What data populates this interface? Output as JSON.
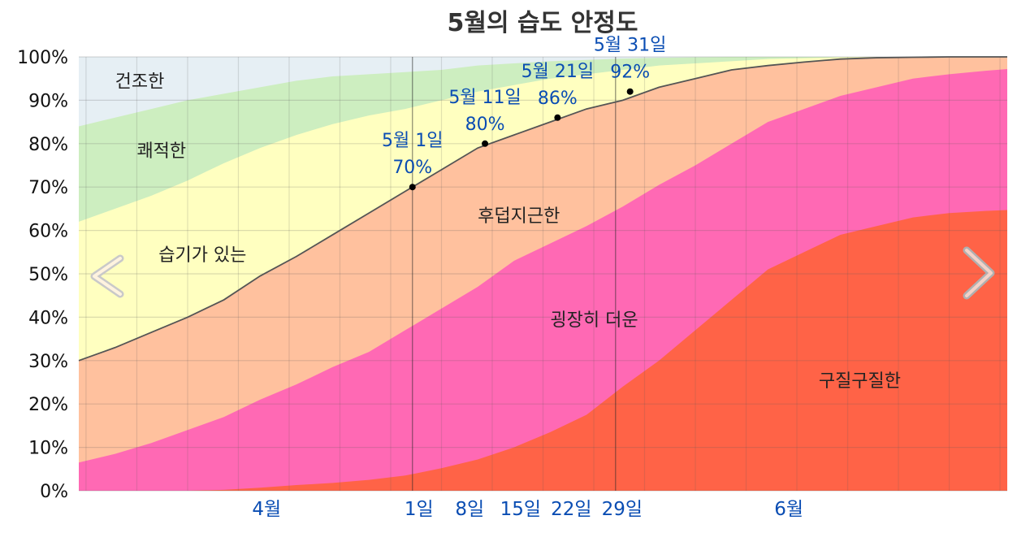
{
  "chart_data": {
    "type": "area",
    "title": "5월의 습도 안정도",
    "ylim": [
      0,
      100
    ],
    "y_ticks": [
      "0%",
      "10%",
      "20%",
      "30%",
      "40%",
      "50%",
      "60%",
      "70%",
      "80%",
      "90%",
      "100%"
    ],
    "xlim": [
      -45,
      83
    ],
    "x_tick_labels": [
      {
        "x": -20,
        "label": "4월"
      },
      {
        "x": 1,
        "label": "1일"
      },
      {
        "x": 8,
        "label": "8일"
      },
      {
        "x": 15,
        "label": "15일"
      },
      {
        "x": 22,
        "label": "22일"
      },
      {
        "x": 29,
        "label": "29일"
      },
      {
        "x": 52,
        "label": "6월"
      }
    ],
    "grid": true,
    "x": [
      -45,
      -40,
      -35,
      -30,
      -25,
      -20,
      -15,
      -10,
      -5,
      0,
      5,
      10,
      15,
      20,
      25,
      30,
      35,
      40,
      45,
      50,
      55,
      60,
      65,
      70,
      75,
      80,
      83
    ],
    "series": [
      {
        "name": "구질구질한",
        "color": "#ff6347",
        "cumulative": [
          0,
          0,
          0,
          0,
          0.2,
          0.7,
          1.3,
          1.8,
          2.5,
          3.5,
          5.2,
          7.2,
          10,
          13.5,
          17.5,
          24,
          30,
          37,
          44,
          51,
          55,
          59,
          61,
          63,
          64,
          64.5,
          64.7
        ]
      },
      {
        "name": "굉장히 더운",
        "color": "#ff69b4",
        "cumulative": [
          6.5,
          8.5,
          11,
          14,
          17,
          21,
          24.5,
          28.5,
          32,
          37,
          42,
          47,
          53,
          57,
          61,
          65.5,
          70.5,
          75,
          80,
          85,
          88,
          91,
          93,
          95,
          96,
          96.8,
          97.2
        ]
      },
      {
        "name": "후덥지근한",
        "color": "#ffc19e",
        "cumulative": [
          30,
          33,
          36.5,
          40,
          44,
          49.5,
          54,
          59,
          64,
          69,
          74,
          79,
          82,
          85,
          88,
          90,
          93,
          95,
          97,
          98,
          98.8,
          99.5,
          99.8,
          99.9,
          100,
          100,
          100
        ]
      },
      {
        "name": "습기가 있는",
        "color": "#ffffc0",
        "cumulative": [
          62,
          65,
          68,
          71.5,
          75.5,
          79,
          82,
          84.5,
          86.5,
          88,
          90,
          92,
          93.5,
          95,
          96,
          97,
          98,
          98.5,
          99,
          99.5,
          99.7,
          99.9,
          100,
          100,
          100,
          100,
          100
        ]
      },
      {
        "name": "쾌적한",
        "color": "#cdeec0",
        "cumulative": [
          84,
          86,
          88,
          90,
          91.5,
          93,
          94.5,
          95.5,
          96,
          96.5,
          97,
          98,
          98.5,
          99,
          99.3,
          99.6,
          99.8,
          99.9,
          100,
          100,
          100,
          100,
          100,
          100,
          100,
          100,
          100
        ]
      },
      {
        "name": "건조한",
        "color": "#e6eff4",
        "cumulative": [
          100,
          100,
          100,
          100,
          100,
          100,
          100,
          100,
          100,
          100,
          100,
          100,
          100,
          100,
          100,
          100,
          100,
          100,
          100,
          100,
          100,
          100,
          100,
          100,
          100,
          100,
          100
        ]
      }
    ],
    "band_labels": [
      {
        "series": "건조한",
        "x": -40,
        "y": 93
      },
      {
        "series": "쾌적한",
        "x": -37,
        "y": 77
      },
      {
        "series": "습기가 있는",
        "x": -34,
        "y": 53
      },
      {
        "series": "후덥지근한",
        "x": 10,
        "y": 62
      },
      {
        "series": "굉장히 더운",
        "x": 20,
        "y": 38
      },
      {
        "series": "구질구질한",
        "x": 57,
        "y": 24
      }
    ],
    "annotations": [
      {
        "x": 1,
        "y": 70,
        "date": "5월 1일",
        "value": "70%"
      },
      {
        "x": 11,
        "y": 80,
        "date": "5월 11일",
        "value": "80%"
      },
      {
        "x": 21,
        "y": 86,
        "date": "5월 21일",
        "value": "86%"
      },
      {
        "x": 31,
        "y": 92,
        "date": "5월 31일",
        "value": "92%"
      }
    ]
  },
  "nav": {
    "prev_icon": "chevron-left-icon",
    "next_icon": "chevron-right-icon"
  }
}
